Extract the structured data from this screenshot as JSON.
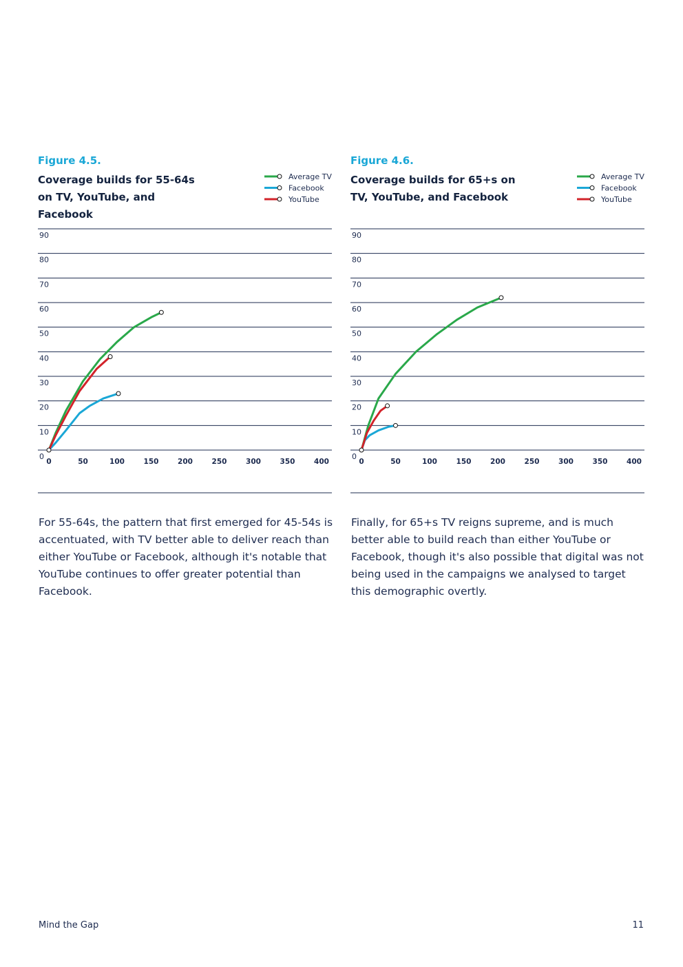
{
  "colors": {
    "tv": "#2aa84a",
    "facebook": "#1aa7d6",
    "youtube": "#d2232a",
    "grid": "#1d2b4f",
    "figure_label": "#1aa7d6"
  },
  "figures": [
    {
      "label": "Figure 4.5.",
      "title": "Coverage builds for 55-64s on TV, YouTube, and Facebook"
    },
    {
      "label": "Figure 4.6.",
      "title": "Coverage builds for 65+s on TV, YouTube, and Facebook"
    }
  ],
  "paragraphs": [
    "For 55-64s, the pattern that first emerged for 45-54s is accentuated, with TV better able to deliver reach than either YouTube or Facebook, although it's notable that YouTube continues to offer greater potential than Facebook.",
    "Finally, for 65+s TV reigns supreme, and is much better able to build reach than either YouTube or Facebook, though it's also possible that digital was not being used in the campaigns we analysed to target this demographic overtly."
  ],
  "footer": {
    "title": "Mind the Gap",
    "page": "11"
  },
  "chart_data": [
    {
      "type": "line",
      "title": "Coverage builds for 55-64s on TV, YouTube, and Facebook",
      "xlim": [
        0,
        400
      ],
      "ylim": [
        0,
        90
      ],
      "x_ticks": [
        0,
        50,
        100,
        150,
        200,
        250,
        300,
        350,
        400
      ],
      "y_ticks": [
        0,
        10,
        20,
        30,
        40,
        50,
        60,
        70,
        80,
        90
      ],
      "grid": true,
      "legend": "top-right",
      "series": [
        {
          "name": "Average TV",
          "color": "#2aa84a",
          "points": [
            [
              0,
              0
            ],
            [
              10,
              7
            ],
            [
              25,
              16
            ],
            [
              50,
              28
            ],
            [
              75,
              37
            ],
            [
              100,
              44
            ],
            [
              125,
              50
            ],
            [
              150,
              54
            ],
            [
              165,
              56
            ]
          ]
        },
        {
          "name": "Facebook",
          "color": "#1aa7d6",
          "points": [
            [
              0,
              0
            ],
            [
              10,
              3
            ],
            [
              25,
              8
            ],
            [
              45,
              15
            ],
            [
              60,
              18
            ],
            [
              80,
              21
            ],
            [
              102,
              23
            ]
          ]
        },
        {
          "name": "YouTube",
          "color": "#d2232a",
          "points": [
            [
              0,
              0
            ],
            [
              10,
              6
            ],
            [
              25,
              14
            ],
            [
              45,
              24
            ],
            [
              70,
              33
            ],
            [
              90,
              38
            ]
          ]
        }
      ]
    },
    {
      "type": "line",
      "title": "Coverage builds for 65+s on TV, YouTube, and Facebook",
      "xlim": [
        0,
        400
      ],
      "ylim": [
        0,
        90
      ],
      "x_ticks": [
        0,
        50,
        100,
        150,
        200,
        250,
        300,
        350,
        400
      ],
      "y_ticks": [
        0,
        10,
        20,
        30,
        40,
        50,
        60,
        70,
        80,
        90
      ],
      "grid": true,
      "legend": "top-right",
      "series": [
        {
          "name": "Average TV",
          "color": "#2aa84a",
          "points": [
            [
              0,
              0
            ],
            [
              10,
              10
            ],
            [
              25,
              21
            ],
            [
              50,
              31
            ],
            [
              80,
              40
            ],
            [
              110,
              47
            ],
            [
              140,
              53
            ],
            [
              170,
              58
            ],
            [
              205,
              62
            ]
          ]
        },
        {
          "name": "Facebook",
          "color": "#1aa7d6",
          "points": [
            [
              0,
              0
            ],
            [
              5,
              4
            ],
            [
              12,
              6
            ],
            [
              25,
              8
            ],
            [
              40,
              9.5
            ],
            [
              50,
              10
            ]
          ]
        },
        {
          "name": "YouTube",
          "color": "#d2232a",
          "points": [
            [
              0,
              0
            ],
            [
              8,
              7
            ],
            [
              18,
              12
            ],
            [
              28,
              16
            ],
            [
              38,
              18
            ]
          ]
        }
      ]
    }
  ]
}
